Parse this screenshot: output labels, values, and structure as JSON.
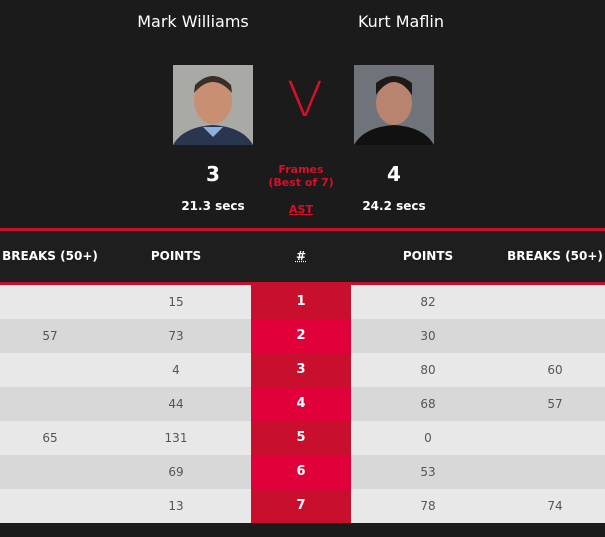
{
  "player1": {
    "name": "Mark Williams",
    "frames": "3",
    "avg_shot_time": "21.3 secs"
  },
  "player2": {
    "name": "Kurt Maflin",
    "frames": "4",
    "avg_shot_time": "24.2 secs"
  },
  "versus": "V",
  "frames_label": "Frames",
  "best_of": "(Best of 7)",
  "ast_label": "AST",
  "accent_color": "#c8102e",
  "table": {
    "headers": [
      "BREAKS (50+)",
      "POINTS",
      "#",
      "POINTS",
      "BREAKS (50+)"
    ],
    "rows": [
      {
        "p1_breaks": "",
        "p1_points": "15",
        "frame": "1",
        "p2_points": "82",
        "p2_breaks": ""
      },
      {
        "p1_breaks": "57",
        "p1_points": "73",
        "frame": "2",
        "p2_points": "30",
        "p2_breaks": ""
      },
      {
        "p1_breaks": "",
        "p1_points": "4",
        "frame": "3",
        "p2_points": "80",
        "p2_breaks": "60"
      },
      {
        "p1_breaks": "",
        "p1_points": "44",
        "frame": "4",
        "p2_points": "68",
        "p2_breaks": "57"
      },
      {
        "p1_breaks": "65",
        "p1_points": "131",
        "frame": "5",
        "p2_points": "0",
        "p2_breaks": ""
      },
      {
        "p1_breaks": "",
        "p1_points": "69",
        "frame": "6",
        "p2_points": "53",
        "p2_breaks": ""
      },
      {
        "p1_breaks": "",
        "p1_points": "13",
        "frame": "7",
        "p2_points": "78",
        "p2_breaks": "74"
      }
    ]
  }
}
